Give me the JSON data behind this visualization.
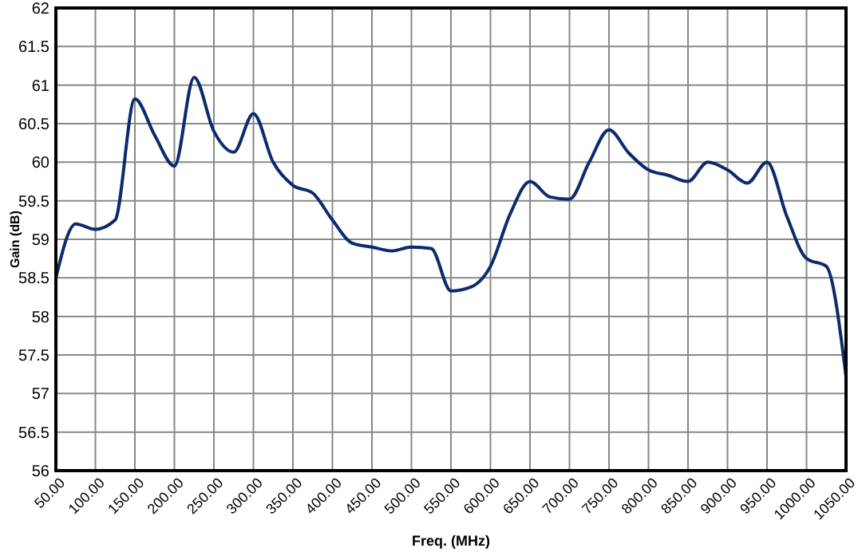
{
  "chart_data": {
    "type": "line",
    "xlabel": "Freq. (MHz)",
    "ylabel": "Gain (dB)",
    "x": [
      50,
      75,
      100,
      125,
      150,
      175,
      200,
      225,
      250,
      275,
      300,
      325,
      350,
      375,
      400,
      425,
      450,
      475,
      500,
      525,
      550,
      575,
      600,
      625,
      650,
      675,
      700,
      725,
      750,
      775,
      800,
      825,
      850,
      875,
      900,
      925,
      950,
      975,
      1000,
      1025,
      1050
    ],
    "series": [
      {
        "color": "#0d2a6e",
        "values": [
          58.5,
          59.2,
          59.13,
          59.25,
          60.82,
          60.35,
          59.95,
          61.1,
          60.4,
          60.13,
          60.63,
          60.0,
          59.7,
          59.6,
          59.25,
          58.95,
          58.9,
          58.85,
          58.9,
          58.88,
          58.33,
          58.38,
          58.65,
          59.33,
          59.75,
          59.55,
          59.52,
          60.0,
          60.42,
          60.12,
          59.9,
          59.83,
          59.75,
          60.0,
          59.9,
          59.73,
          60.0,
          59.3,
          58.75,
          58.65,
          57.22
        ]
      }
    ],
    "xlim": [
      50,
      1050
    ],
    "xticks": [
      {
        "value": 50,
        "label": "50.00"
      },
      {
        "value": 100,
        "label": "100.00"
      },
      {
        "value": 150,
        "label": "150.00"
      },
      {
        "value": 200,
        "label": "200.00"
      },
      {
        "value": 250,
        "label": "250.00"
      },
      {
        "value": 300,
        "label": "300.00"
      },
      {
        "value": 350,
        "label": "350.00"
      },
      {
        "value": 400,
        "label": "400.00"
      },
      {
        "value": 450,
        "label": "450.00"
      },
      {
        "value": 500,
        "label": "500.00"
      },
      {
        "value": 550,
        "label": "550.00"
      },
      {
        "value": 600,
        "label": "600.00"
      },
      {
        "value": 650,
        "label": "650.00"
      },
      {
        "value": 700,
        "label": "700.00"
      },
      {
        "value": 750,
        "label": "750.00"
      },
      {
        "value": 800,
        "label": "800.00"
      },
      {
        "value": 850,
        "label": "850.00"
      },
      {
        "value": 900,
        "label": "900.00"
      },
      {
        "value": 950,
        "label": "950.00"
      },
      {
        "value": 1000,
        "label": "1000.00"
      },
      {
        "value": 1050,
        "label": "1050.00"
      }
    ],
    "ylim": [
      56,
      62
    ],
    "yticks": [
      56,
      56.5,
      57,
      57.5,
      58,
      58.5,
      59,
      59.5,
      60,
      60.5,
      61,
      61.5,
      62
    ],
    "grid": true,
    "marker": "none",
    "line_style": "solid"
  }
}
